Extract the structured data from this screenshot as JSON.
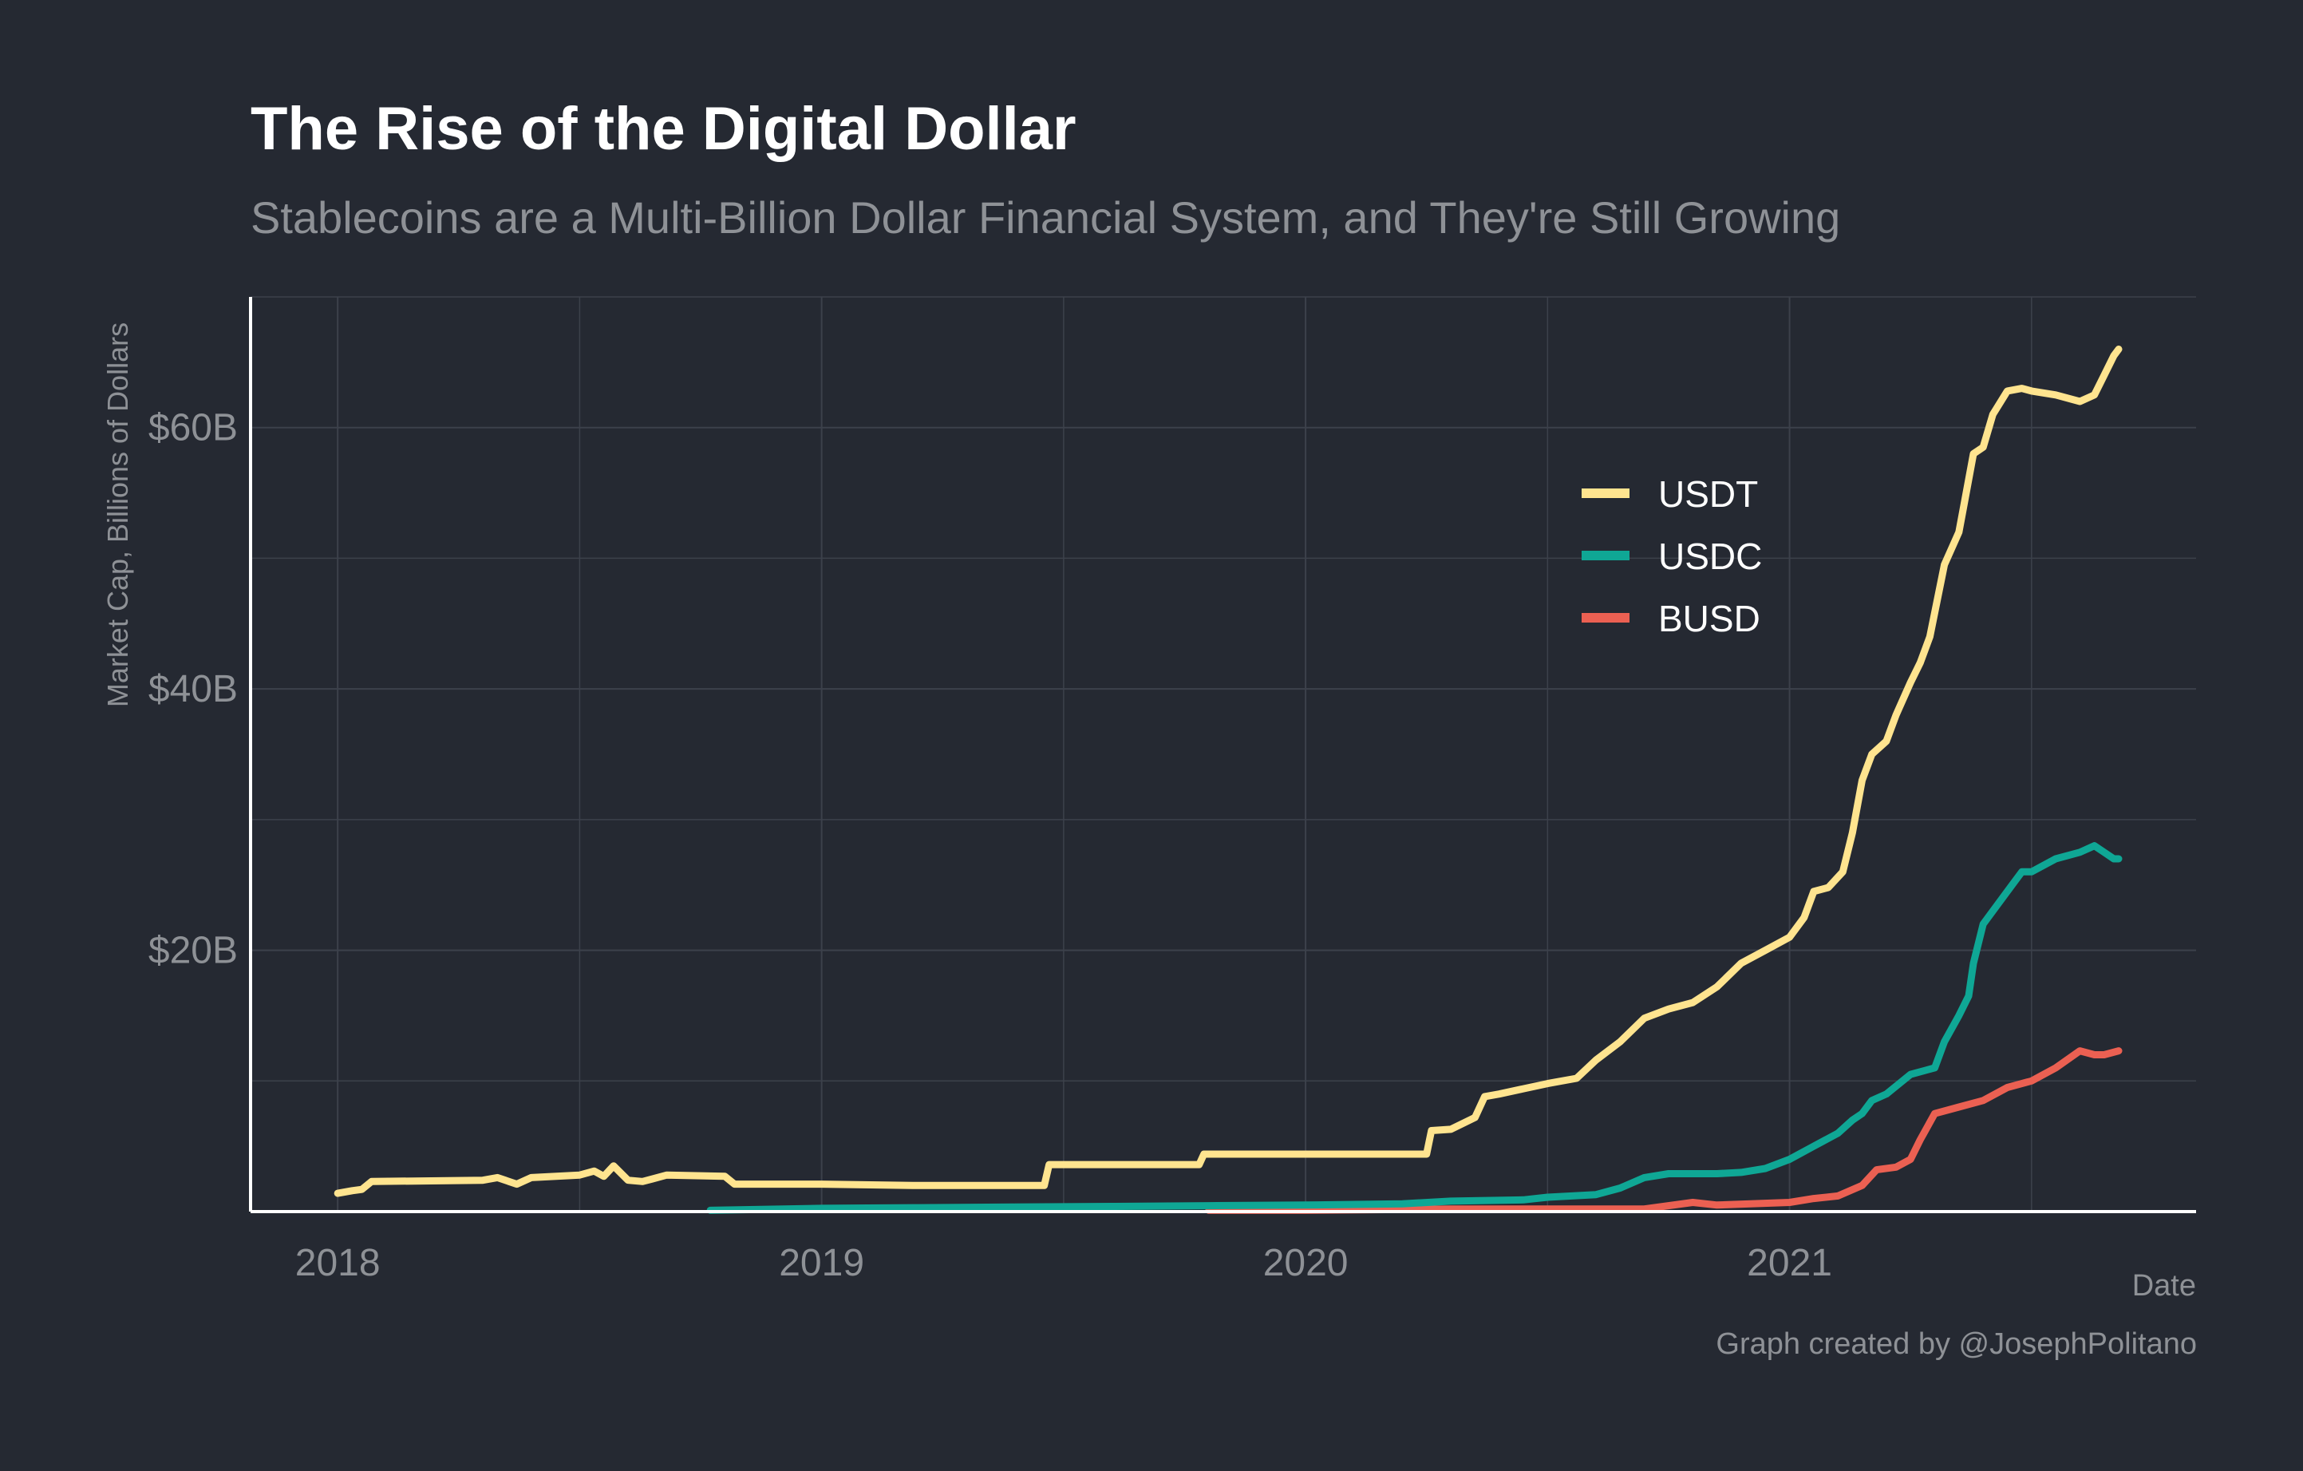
{
  "title": "The Rise of the Digital Dollar",
  "subtitle": "Stablecoins are a Multi-Billion Dollar Financial System, and They're Still Growing",
  "caption": "Graph created by @JosephPolitano",
  "colors": {
    "background": "#252932",
    "grid": "#3c414b",
    "axis": "#ffffff",
    "muted_text": "#8e9196"
  },
  "chart_data": {
    "type": "line",
    "xlabel": "Date",
    "ylabel": "Market Cap, Billions of Dollars",
    "xlim": [
      2017.82,
      2021.84
    ],
    "ylim": [
      0,
      70
    ],
    "x_ticks": [
      {
        "value": 2018,
        "label": "2018"
      },
      {
        "value": 2019,
        "label": "2019"
      },
      {
        "value": 2020,
        "label": "2020"
      },
      {
        "value": 2021,
        "label": "2021"
      }
    ],
    "x_minor": [
      2018.5,
      2019.5,
      2020.5,
      2021.5
    ],
    "y_ticks": [
      {
        "value": 20,
        "label": "$20B"
      },
      {
        "value": 40,
        "label": "$40B"
      },
      {
        "value": 60,
        "label": "$60B"
      }
    ],
    "y_minor": [
      10,
      30,
      50,
      70
    ],
    "legend": {
      "position": "top-right"
    },
    "series": [
      {
        "name": "USDT",
        "color": "#ffe48f",
        "points": [
          [
            2018.0,
            1.4
          ],
          [
            2018.03,
            1.6
          ],
          [
            2018.05,
            1.7
          ],
          [
            2018.07,
            2.3
          ],
          [
            2018.3,
            2.4
          ],
          [
            2018.33,
            2.6
          ],
          [
            2018.37,
            2.1
          ],
          [
            2018.4,
            2.6
          ],
          [
            2018.5,
            2.8
          ],
          [
            2018.53,
            3.1
          ],
          [
            2018.55,
            2.7
          ],
          [
            2018.57,
            3.5
          ],
          [
            2018.6,
            2.4
          ],
          [
            2018.63,
            2.3
          ],
          [
            2018.65,
            2.5
          ],
          [
            2018.68,
            2.8
          ],
          [
            2018.8,
            2.7
          ],
          [
            2018.82,
            2.1
          ],
          [
            2019.0,
            2.1
          ],
          [
            2019.2,
            2.0
          ],
          [
            2019.46,
            2.0
          ],
          [
            2019.47,
            3.6
          ],
          [
            2019.78,
            3.6
          ],
          [
            2019.79,
            4.4
          ],
          [
            2020.25,
            4.4
          ],
          [
            2020.26,
            6.2
          ],
          [
            2020.3,
            6.3
          ],
          [
            2020.35,
            7.2
          ],
          [
            2020.37,
            8.8
          ],
          [
            2020.4,
            9.0
          ],
          [
            2020.45,
            9.4
          ],
          [
            2020.5,
            9.8
          ],
          [
            2020.56,
            10.2
          ],
          [
            2020.6,
            11.6
          ],
          [
            2020.65,
            13.0
          ],
          [
            2020.7,
            14.8
          ],
          [
            2020.75,
            15.5
          ],
          [
            2020.8,
            16.0
          ],
          [
            2020.85,
            17.2
          ],
          [
            2020.9,
            19.0
          ],
          [
            2020.95,
            20.0
          ],
          [
            2021.0,
            21.0
          ],
          [
            2021.03,
            22.5
          ],
          [
            2021.05,
            24.5
          ],
          [
            2021.08,
            24.8
          ],
          [
            2021.11,
            26.0
          ],
          [
            2021.13,
            29.0
          ],
          [
            2021.15,
            33.0
          ],
          [
            2021.17,
            35.0
          ],
          [
            2021.2,
            36.0
          ],
          [
            2021.22,
            38.0
          ],
          [
            2021.25,
            40.5
          ],
          [
            2021.27,
            42.0
          ],
          [
            2021.29,
            44.0
          ],
          [
            2021.32,
            49.5
          ],
          [
            2021.35,
            52.0
          ],
          [
            2021.36,
            54.0
          ],
          [
            2021.38,
            58.0
          ],
          [
            2021.4,
            58.5
          ],
          [
            2021.42,
            61.0
          ],
          [
            2021.45,
            62.8
          ],
          [
            2021.48,
            63.0
          ],
          [
            2021.5,
            62.8
          ],
          [
            2021.55,
            62.5
          ],
          [
            2021.6,
            62.0
          ],
          [
            2021.63,
            62.5
          ],
          [
            2021.65,
            64.0
          ],
          [
            2021.67,
            65.5
          ],
          [
            2021.68,
            66.0
          ]
        ]
      },
      {
        "name": "USDC",
        "color": "#0fa795",
        "points": [
          [
            2018.77,
            0.1
          ],
          [
            2019.0,
            0.25
          ],
          [
            2019.2,
            0.3
          ],
          [
            2019.4,
            0.35
          ],
          [
            2019.6,
            0.4
          ],
          [
            2019.8,
            0.45
          ],
          [
            2020.0,
            0.5
          ],
          [
            2020.2,
            0.6
          ],
          [
            2020.3,
            0.8
          ],
          [
            2020.45,
            0.9
          ],
          [
            2020.5,
            1.1
          ],
          [
            2020.55,
            1.2
          ],
          [
            2020.6,
            1.3
          ],
          [
            2020.65,
            1.8
          ],
          [
            2020.7,
            2.6
          ],
          [
            2020.75,
            2.9
          ],
          [
            2020.8,
            2.9
          ],
          [
            2020.85,
            2.9
          ],
          [
            2020.9,
            3.0
          ],
          [
            2020.95,
            3.3
          ],
          [
            2021.0,
            4.0
          ],
          [
            2021.05,
            5.0
          ],
          [
            2021.1,
            6.0
          ],
          [
            2021.13,
            7.0
          ],
          [
            2021.15,
            7.5
          ],
          [
            2021.17,
            8.5
          ],
          [
            2021.2,
            9.0
          ],
          [
            2021.25,
            10.5
          ],
          [
            2021.3,
            11.0
          ],
          [
            2021.32,
            13.0
          ],
          [
            2021.35,
            15.0
          ],
          [
            2021.37,
            16.5
          ],
          [
            2021.38,
            19.0
          ],
          [
            2021.4,
            22.0
          ],
          [
            2021.43,
            23.5
          ],
          [
            2021.46,
            25.0
          ],
          [
            2021.48,
            26.0
          ],
          [
            2021.5,
            26.0
          ],
          [
            2021.55,
            27.0
          ],
          [
            2021.6,
            27.5
          ],
          [
            2021.63,
            28.0
          ],
          [
            2021.65,
            27.5
          ],
          [
            2021.67,
            27.0
          ],
          [
            2021.68,
            27.0
          ]
        ]
      },
      {
        "name": "BUSD",
        "color": "#eb6052",
        "points": [
          [
            2019.8,
            0.1
          ],
          [
            2020.0,
            0.1
          ],
          [
            2020.3,
            0.2
          ],
          [
            2020.5,
            0.2
          ],
          [
            2020.7,
            0.2
          ],
          [
            2020.8,
            0.7
          ],
          [
            2020.85,
            0.5
          ],
          [
            2021.0,
            0.7
          ],
          [
            2021.05,
            1.0
          ],
          [
            2021.1,
            1.2
          ],
          [
            2021.15,
            2.0
          ],
          [
            2021.18,
            3.2
          ],
          [
            2021.22,
            3.4
          ],
          [
            2021.25,
            4.0
          ],
          [
            2021.27,
            5.5
          ],
          [
            2021.3,
            7.5
          ],
          [
            2021.35,
            8.0
          ],
          [
            2021.4,
            8.5
          ],
          [
            2021.45,
            9.5
          ],
          [
            2021.5,
            10.0
          ],
          [
            2021.55,
            11.0
          ],
          [
            2021.6,
            12.3
          ],
          [
            2021.63,
            12.0
          ],
          [
            2021.65,
            12.0
          ],
          [
            2021.68,
            12.3
          ]
        ]
      }
    ]
  }
}
